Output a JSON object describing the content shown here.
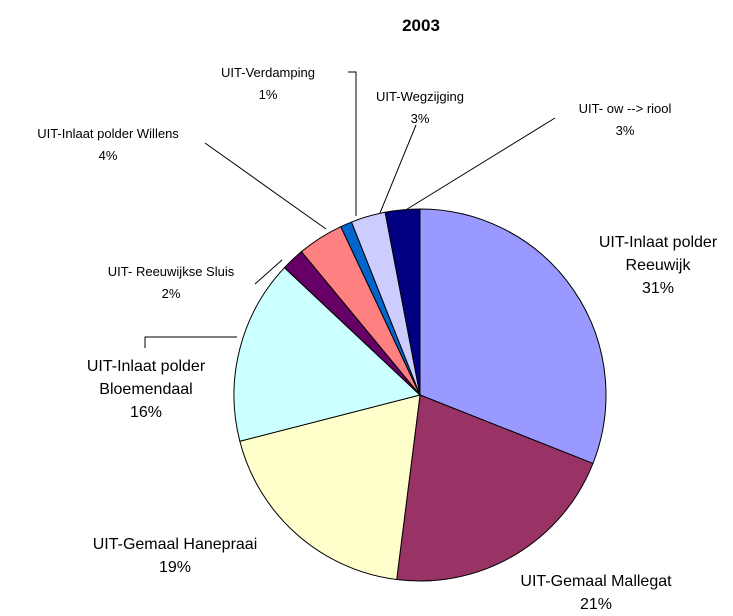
{
  "chart_data": {
    "type": "pie",
    "title": "2003",
    "categories": [
      "UIT-Inlaat polder Reeuwijk",
      "UIT-Gemaal Mallegat",
      "UIT-Gemaal Hanepraai",
      "UIT-Inlaat polder Bloemendaal",
      "UIT- Reeuwijkse Sluis",
      "UIT-Inlaat polder Willens",
      "UIT-Verdamping",
      "UIT-Wegzijging",
      "UIT- ow --> riool"
    ],
    "values": [
      31,
      21,
      19,
      16,
      2,
      4,
      1,
      3,
      3
    ],
    "value_labels": [
      "31%",
      "21%",
      "19%",
      "16%",
      "2%",
      "4%",
      "1%",
      "3%",
      "3%"
    ],
    "colors": [
      "#9999ff",
      "#993366",
      "#ffffcc",
      "#ccffff",
      "#660066",
      "#ff8080",
      "#0066cc",
      "#ccccff",
      "#000080"
    ]
  }
}
